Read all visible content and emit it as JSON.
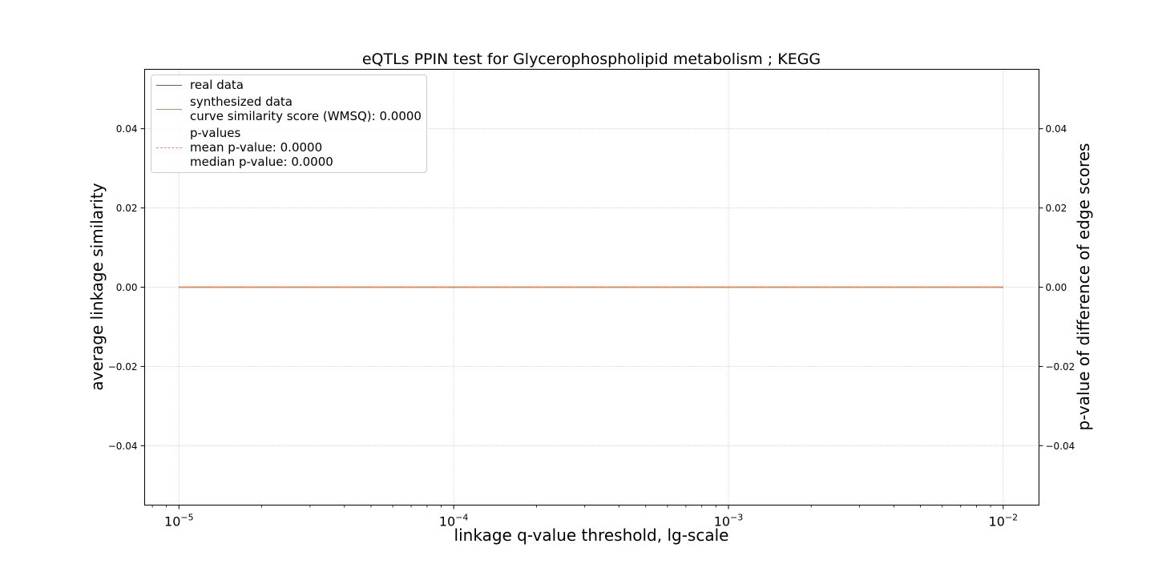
{
  "chart_data": {
    "type": "line",
    "title": "eQTLs PPIN test for Glycerophospholipid metabolism ; KEGG",
    "xlabel": "linkage q-value threshold, lg-scale",
    "ylabel": "average linkage similarity",
    "y2label": "p-value of difference of edge scores",
    "xscale": "log",
    "xlim": [
      7.5e-06,
      0.0135
    ],
    "ylim": [
      -0.055,
      0.055
    ],
    "y2lim": [
      -0.055,
      0.055
    ],
    "grid": true,
    "legend_position": "upper-left",
    "x_major_ticks": [
      {
        "value": 1e-05,
        "base": "10",
        "exp": "−5"
      },
      {
        "value": 0.0001,
        "base": "10",
        "exp": "−4"
      },
      {
        "value": 0.001,
        "base": "10",
        "exp": "−3"
      },
      {
        "value": 0.01,
        "base": "10",
        "exp": "−2"
      }
    ],
    "y_ticks": [
      {
        "value": 0.04,
        "label": "0.04"
      },
      {
        "value": 0.02,
        "label": "0.02"
      },
      {
        "value": 0.0,
        "label": "0.00"
      },
      {
        "value": -0.02,
        "label": "−0.02"
      },
      {
        "value": -0.04,
        "label": "−0.04"
      }
    ],
    "y2_ticks": [
      {
        "value": 0.04,
        "label": "0.04"
      },
      {
        "value": 0.02,
        "label": "0.02"
      },
      {
        "value": 0.0,
        "label": "0.00"
      },
      {
        "value": -0.02,
        "label": "−0.02"
      },
      {
        "value": -0.04,
        "label": "−0.04"
      }
    ],
    "series": [
      {
        "name": "real data",
        "color": "#1f77b4",
        "style": "solid",
        "axis": "left",
        "x": [
          1e-05,
          0.0001,
          0.001,
          0.01
        ],
        "y": [
          0,
          0,
          0,
          0
        ]
      },
      {
        "name": "synthesized data",
        "color": "#ff7f0e",
        "style": "solid",
        "axis": "left",
        "x": [
          1e-05,
          0.0001,
          0.001,
          0.01
        ],
        "y": [
          0,
          0,
          0,
          0
        ]
      },
      {
        "name": "p-values",
        "color": "#ff7f7f",
        "style": "dashed",
        "axis": "right",
        "x": [
          1e-05,
          0.0001,
          0.001,
          0.01
        ],
        "y": [
          0,
          0,
          0,
          0
        ]
      }
    ],
    "legend": [
      {
        "series": 0,
        "lines": [
          "real data"
        ]
      },
      {
        "series": 1,
        "lines": [
          "synthesized data",
          "curve similarity score (WMSQ): 0.0000"
        ]
      },
      {
        "series": 2,
        "lines": [
          "p-values",
          "mean p-value: 0.0000",
          "median p-value: 0.0000"
        ]
      }
    ]
  }
}
